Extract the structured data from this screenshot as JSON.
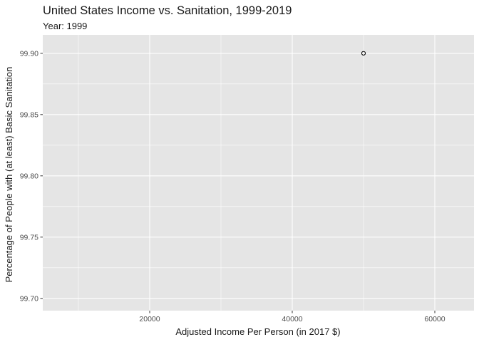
{
  "chart_data": {
    "type": "scatter",
    "title": "United States Income vs. Sanitation, 1999-2019",
    "subtitle": "Year: 1999",
    "xlabel": "Adjusted Income Per Person (in 2017 $)",
    "ylabel": "Percentage of People with (at least) Basic Sanitation",
    "xlim": [
      5000,
      65500
    ],
    "ylim": [
      99.69,
      99.915
    ],
    "x_ticks": [
      20000,
      40000,
      60000
    ],
    "x_tick_labels": [
      "20000",
      "40000",
      "60000"
    ],
    "y_ticks": [
      99.7,
      99.75,
      99.8,
      99.85,
      99.9
    ],
    "y_tick_labels": [
      "99.70",
      "99.75",
      "99.80",
      "99.85",
      "99.90"
    ],
    "grid": true,
    "points": [
      {
        "x": 50000,
        "y": 99.9
      }
    ],
    "colors": {
      "panel": "#e5e5e5",
      "grid_major": "#ffffff",
      "point_stroke": "#000000"
    }
  }
}
